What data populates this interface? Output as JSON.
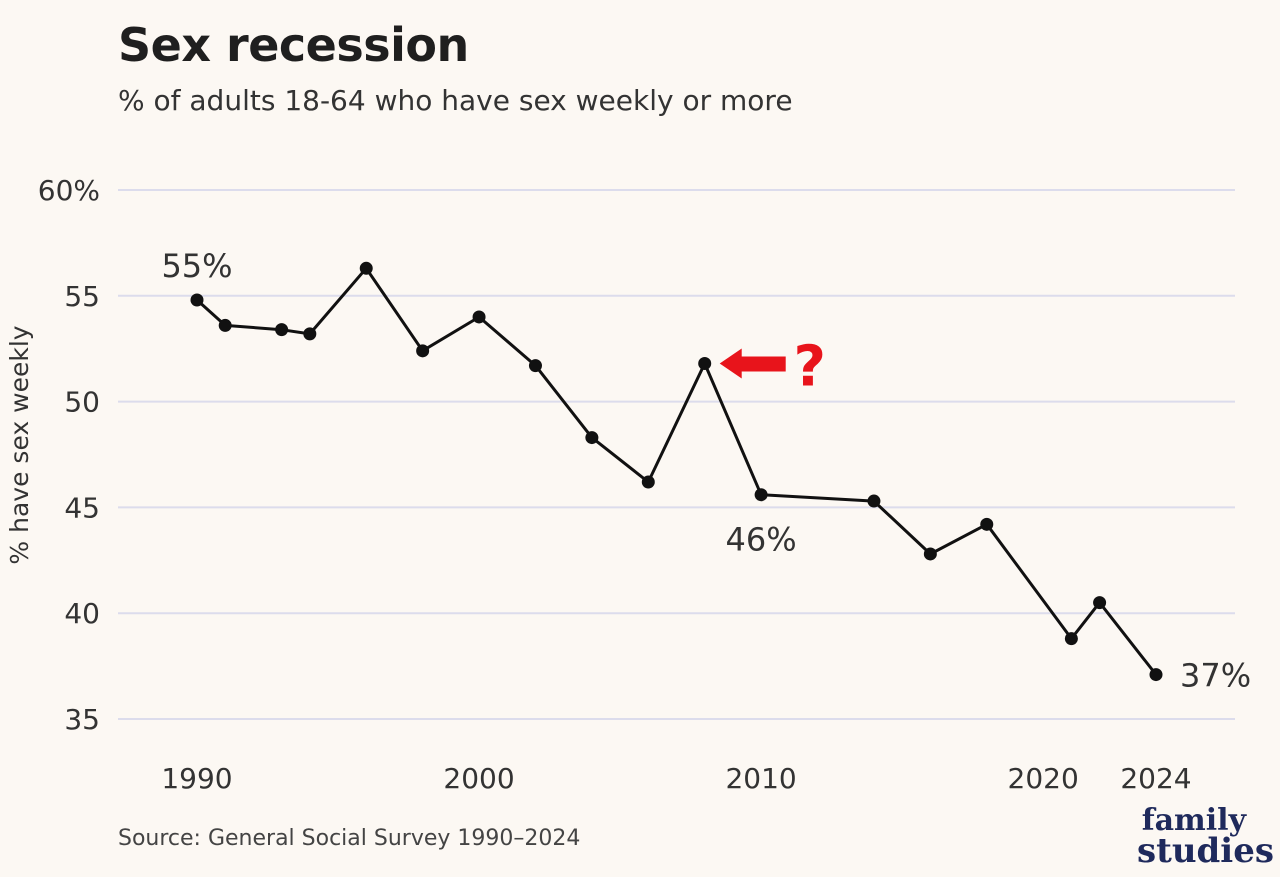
{
  "chart_data": {
    "type": "line",
    "title": "Sex recession",
    "subtitle": "% of adults 18-64 who have sex weekly or more",
    "ylabel": "% have sex weekly",
    "xlabel": "",
    "ylim": [
      35,
      60
    ],
    "xlim": [
      1990,
      2024
    ],
    "y_ticks": [
      {
        "value": 60,
        "label": "60%"
      },
      {
        "value": 55,
        "label": "55"
      },
      {
        "value": 50,
        "label": "50"
      },
      {
        "value": 45,
        "label": "45"
      },
      {
        "value": 40,
        "label": "40"
      },
      {
        "value": 35,
        "label": "35"
      }
    ],
    "x_ticks": [
      {
        "value": 1990,
        "label": "1990"
      },
      {
        "value": 2000,
        "label": "2000"
      },
      {
        "value": 2010,
        "label": "2010"
      },
      {
        "value": 2020,
        "label": "2020"
      },
      {
        "value": 2024,
        "label": "2024"
      }
    ],
    "grid": "horizontal",
    "series": [
      {
        "x": [
          1990,
          1991,
          1993,
          1994,
          1996,
          1998,
          2000,
          2002,
          2004,
          2006,
          2008,
          2010,
          2014,
          2016,
          2018,
          2021,
          2022,
          2024
        ],
        "values": [
          54.8,
          53.6,
          53.4,
          53.2,
          56.3,
          52.4,
          54.0,
          51.7,
          48.3,
          46.2,
          51.8,
          45.6,
          45.3,
          42.8,
          44.2,
          38.8,
          40.5,
          37.1
        ],
        "color": "#111111"
      }
    ],
    "data_labels": [
      {
        "index": 0,
        "text": "55%",
        "position": "above"
      },
      {
        "index": 11,
        "text": "46%",
        "position": "below"
      },
      {
        "index": 17,
        "text": "37%",
        "position": "right"
      }
    ],
    "annotation": {
      "index": 10,
      "text": "?",
      "color": "#e8141b"
    }
  },
  "source": "Source: General Social Survey 1990–2024",
  "logo": {
    "line1": "family",
    "line2": "studies",
    "color": "#1f2a5c"
  },
  "colors": {
    "background": "#fcf8f3",
    "grid": "#dcdcec",
    "line": "#111111",
    "accent": "#e8141b"
  }
}
